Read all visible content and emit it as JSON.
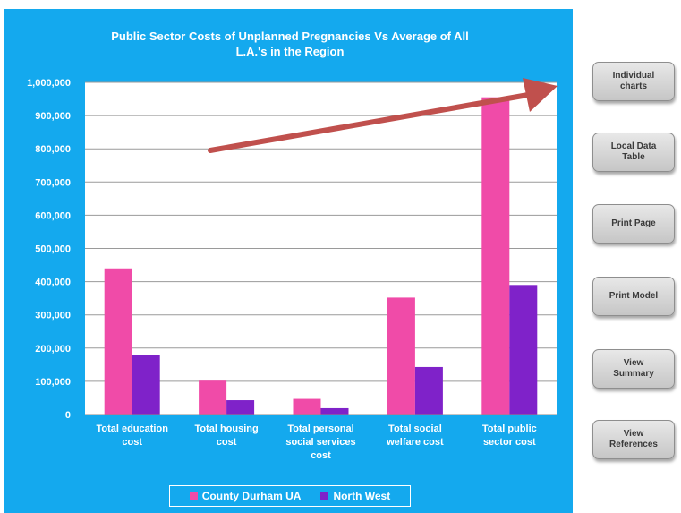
{
  "chart_data": {
    "type": "bar",
    "title_lines": [
      "Public Sector Costs of Unplanned Pregnancies Vs Average of All",
      "L.A.'s in the Region"
    ],
    "categories": [
      [
        "Total education",
        "cost"
      ],
      [
        "Total housing",
        "cost"
      ],
      [
        "Total personal",
        "social services",
        "cost"
      ],
      [
        "Total social",
        "welfare cost"
      ],
      [
        "Total public",
        "sector cost"
      ]
    ],
    "series": [
      {
        "name": "County Durham UA",
        "color": "#f04ba8",
        "values": [
          440000,
          102000,
          47000,
          352000,
          955000
        ]
      },
      {
        "name": "North West",
        "color": "#7f22c9",
        "values": [
          180000,
          43000,
          19000,
          143000,
          390000
        ]
      }
    ],
    "ylim": [
      0,
      1000000
    ],
    "yticks": [
      {
        "value": 0,
        "label": "0"
      },
      {
        "value": 100000,
        "label": "100,000"
      },
      {
        "value": 200000,
        "label": "200,000"
      },
      {
        "value": 300000,
        "label": "300,000"
      },
      {
        "value": 400000,
        "label": "400,000"
      },
      {
        "value": 500000,
        "label": "500,000"
      },
      {
        "value": 600000,
        "label": "600,000"
      },
      {
        "value": 700000,
        "label": "700,000"
      },
      {
        "value": 800000,
        "label": "800,000"
      },
      {
        "value": 900000,
        "label": "900,000"
      },
      {
        "value": 1000000,
        "label": "1,000,000"
      }
    ],
    "grid": true,
    "legend": "bottom",
    "plot_background": "#ffffff",
    "panel_background": "#14a9ee",
    "annotation_arrow_color": "#c0504d"
  },
  "buttons": [
    {
      "label": "Individual\ncharts"
    },
    {
      "label": "Local Data\nTable"
    },
    {
      "label": "Print Page"
    },
    {
      "label": "Print Model"
    },
    {
      "label": "View\nSummary"
    },
    {
      "label": "View\nReferences"
    }
  ]
}
